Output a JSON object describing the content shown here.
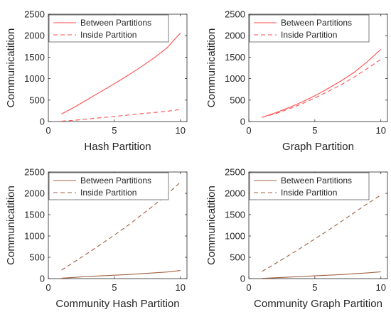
{
  "colors": {
    "red": "#ff4d4d",
    "brown": "#a0603f",
    "axis": "#262626"
  },
  "chart_data": [
    {
      "type": "line",
      "xlabel": "Hash Partition",
      "ylabel": "Communicatition",
      "xlim": [
        0,
        10.5
      ],
      "ylim": [
        0,
        2500
      ],
      "xticks": [
        "0",
        "5",
        "10"
      ],
      "yticks": [
        "0",
        "500",
        "1000",
        "1500",
        "2000",
        "2500"
      ],
      "legend_position": "top-left",
      "color": "red",
      "x": [
        1,
        2,
        3,
        4,
        5,
        6,
        7,
        8,
        9,
        10
      ],
      "series": [
        {
          "name": "Between Partitions",
          "style": "solid",
          "values": [
            175,
            340,
            520,
            700,
            880,
            1070,
            1270,
            1480,
            1720,
            2060
          ]
        },
        {
          "name": "Inside Partition",
          "style": "dashed",
          "values": [
            10,
            30,
            60,
            90,
            120,
            150,
            180,
            210,
            240,
            280
          ]
        }
      ]
    },
    {
      "type": "line",
      "xlabel": "Graph Partition",
      "ylabel": "Communicatition",
      "xlim": [
        0,
        10.5
      ],
      "ylim": [
        0,
        2500
      ],
      "xticks": [
        "0",
        "5",
        "10"
      ],
      "yticks": [
        "0",
        "500",
        "1000",
        "1500",
        "2000",
        "2500"
      ],
      "legend_position": "top-left",
      "color": "red",
      "x": [
        1,
        2,
        3,
        4,
        5,
        6,
        7,
        8,
        9,
        10
      ],
      "series": [
        {
          "name": "Between Partitions",
          "style": "solid",
          "values": [
            100,
            200,
            320,
            450,
            600,
            770,
            950,
            1150,
            1400,
            1680
          ]
        },
        {
          "name": "Inside Partition",
          "style": "dashed",
          "values": [
            100,
            180,
            290,
            410,
            550,
            700,
            860,
            1040,
            1240,
            1450
          ]
        }
      ]
    },
    {
      "type": "line",
      "xlabel": "Community Hash Partition",
      "ylabel": "Communicatition",
      "xlim": [
        0,
        10.5
      ],
      "ylim": [
        0,
        2500
      ],
      "xticks": [
        "0",
        "5",
        "10"
      ],
      "yticks": [
        "0",
        "500",
        "1000",
        "1500",
        "2000",
        "2500"
      ],
      "legend_position": "top-left",
      "color": "brown",
      "x": [
        1,
        2,
        3,
        4,
        5,
        6,
        7,
        8,
        9,
        10
      ],
      "series": [
        {
          "name": "Between Partitions",
          "style": "solid",
          "values": [
            10,
            30,
            50,
            65,
            80,
            95,
            115,
            135,
            155,
            190
          ]
        },
        {
          "name": "Inside Partition",
          "style": "dashed",
          "values": [
            200,
            400,
            600,
            810,
            1020,
            1240,
            1480,
            1720,
            1980,
            2260
          ]
        }
      ]
    },
    {
      "type": "line",
      "xlabel": "Community Graph Partition",
      "ylabel": "Communicatition",
      "xlim": [
        0,
        10.5
      ],
      "ylim": [
        0,
        2500
      ],
      "xticks": [
        "0",
        "5",
        "10"
      ],
      "yticks": [
        "0",
        "500",
        "1000",
        "1500",
        "2000",
        "2500"
      ],
      "legend_position": "top-left",
      "color": "brown",
      "x": [
        1,
        2,
        3,
        4,
        5,
        6,
        7,
        8,
        9,
        10
      ],
      "series": [
        {
          "name": "Between Partitions",
          "style": "solid",
          "values": [
            5,
            20,
            35,
            50,
            65,
            80,
            95,
            115,
            135,
            160
          ]
        },
        {
          "name": "Inside Partition",
          "style": "dashed",
          "values": [
            170,
            350,
            540,
            730,
            930,
            1130,
            1340,
            1550,
            1760,
            1960
          ]
        }
      ]
    }
  ]
}
